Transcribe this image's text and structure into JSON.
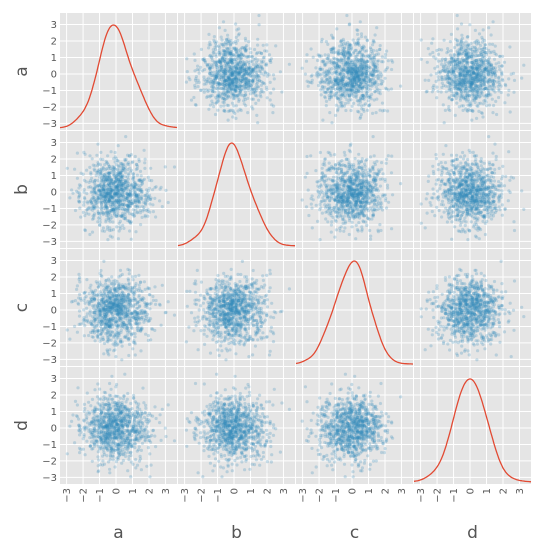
{
  "chart_data": {
    "type": "scatter-matrix",
    "variables": [
      "a",
      "b",
      "c",
      "d"
    ],
    "diagonal": "kde",
    "n_points": 1000,
    "axis_range": [
      -3.4,
      3.7
    ],
    "y_ticks": [
      -3,
      -2,
      -1,
      0,
      1,
      2,
      3
    ],
    "x_ticks": [
      -3,
      -2,
      -1,
      0,
      1,
      2,
      3
    ],
    "point_color": "#348abd",
    "kde_color": "#e24a33",
    "panel_background": "#e5e5e5",
    "grid": true,
    "distribution": {
      "mean": 0,
      "std": 1,
      "correlation": 0
    },
    "kde_peaks": {
      "a": 0.0,
      "b": 0.0,
      "c": 0.05,
      "d": 0.05
    },
    "tick_labels": [
      "−3",
      "−2",
      "−1",
      "0",
      "1",
      "2",
      "3"
    ]
  }
}
